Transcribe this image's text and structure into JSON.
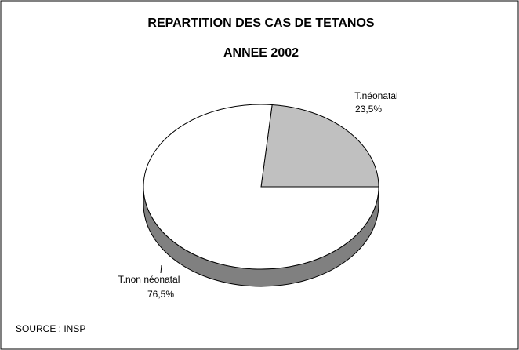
{
  "chart_data": {
    "type": "pie",
    "title": "REPARTITION DES CAS DE TETANOS",
    "subtitle": "ANNEE 2002",
    "categories": [
      "T.néonatal",
      "T.non néonatal"
    ],
    "values": [
      23.5,
      76.5
    ],
    "value_labels": [
      "23,5%",
      "76,5%"
    ],
    "colors": [
      "#c0c0c0",
      "#ffffff"
    ],
    "side_color": "#808080",
    "source": "SOURCE : INSP"
  }
}
